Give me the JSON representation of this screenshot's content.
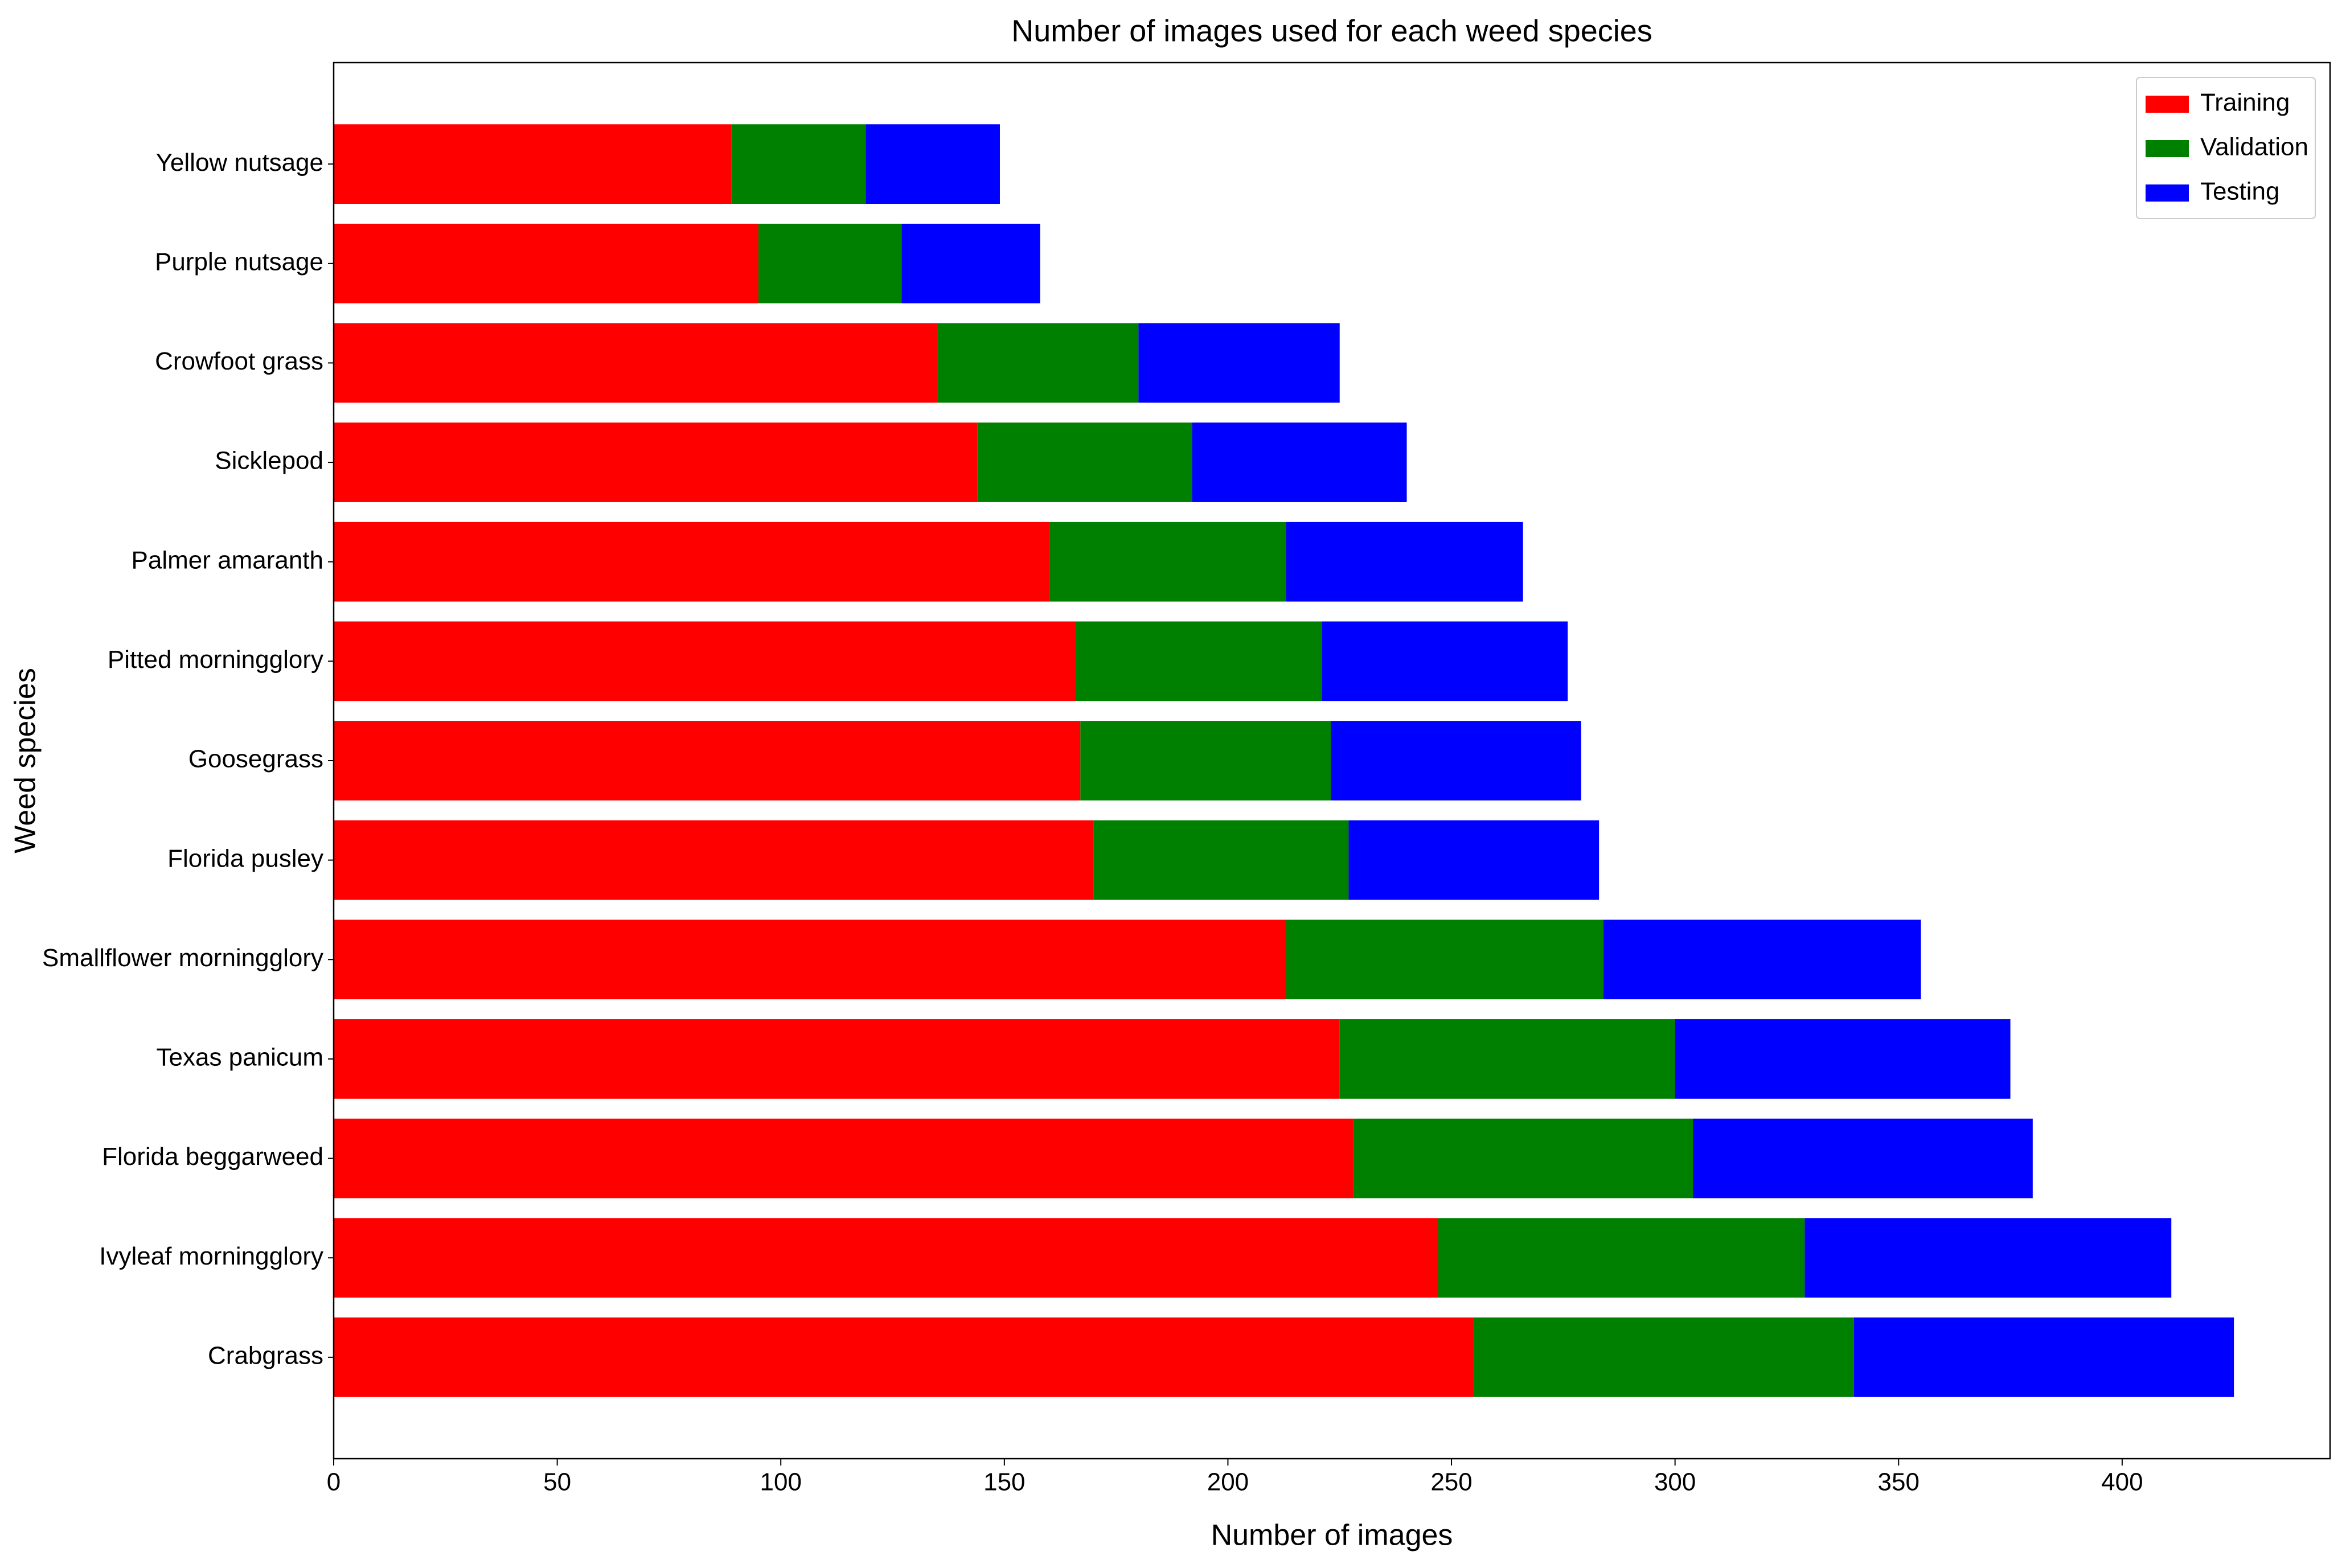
{
  "chart_data": {
    "type": "stacked-barh",
    "title": "Number of images used for each weed species",
    "x_label": "Number of images",
    "y_label": "Weed species",
    "categories": [
      "Crabgrass",
      "Ivyleaf morningglory",
      "Florida beggarweed",
      "Texas panicum",
      "Smallflower morningglory",
      "Florida pusley",
      "Goosegrass",
      "Pitted morningglory",
      "Palmer amaranth",
      "Sicklepod",
      "Crowfoot grass",
      "Purple nutsage",
      "Yellow nutsage"
    ],
    "series": [
      {
        "name": "Training",
        "color": "#ff0000",
        "values": [
          255,
          247,
          228,
          225,
          213,
          170,
          167,
          166,
          160,
          144,
          135,
          95,
          89
        ]
      },
      {
        "name": "Validation",
        "color": "#008000",
        "values": [
          85,
          82,
          76,
          75,
          71,
          57,
          56,
          55,
          53,
          48,
          45,
          32,
          30
        ]
      },
      {
        "name": "Testing",
        "color": "#0000ff",
        "values": [
          85,
          82,
          76,
          75,
          71,
          56,
          56,
          55,
          53,
          48,
          45,
          31,
          30
        ]
      }
    ],
    "xlim": [
      0,
      446.5
    ],
    "xticks": [
      0,
      50,
      100,
      150,
      200,
      250,
      300,
      350,
      400
    ],
    "legend": "upper right"
  }
}
